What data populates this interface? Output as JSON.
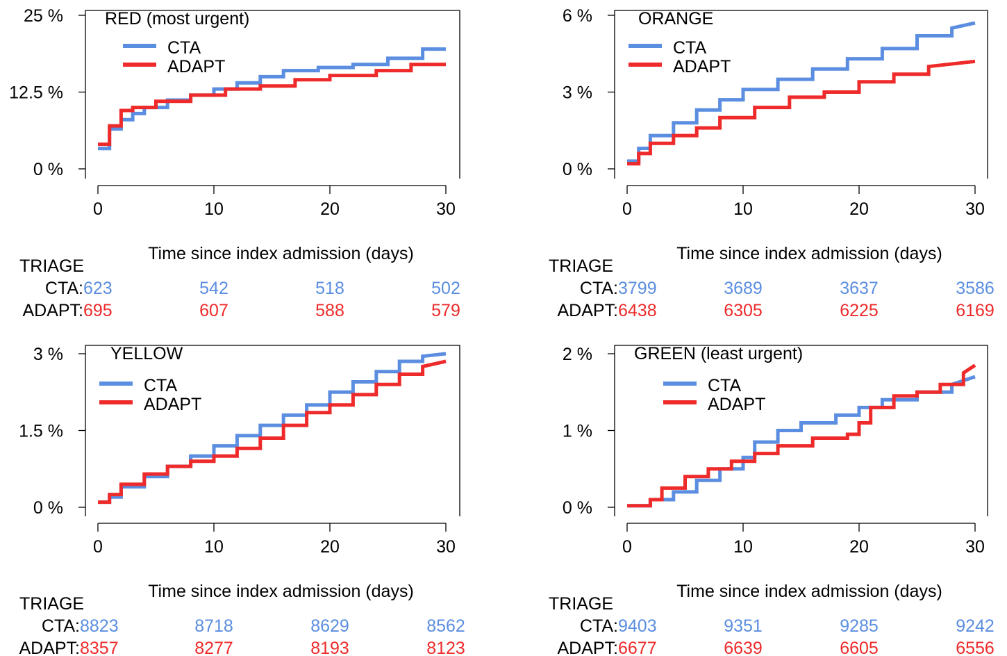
{
  "colors": {
    "cta": "#5b8ee0",
    "adapt": "#ee2a2a",
    "axis": "#000000"
  },
  "chart_data": [
    {
      "type": "line",
      "title": "RED (most urgent)",
      "xlabel": "Time since index admission (days)",
      "xticks": [
        "0",
        "10",
        "20",
        "30"
      ],
      "yticks": [
        "0 %",
        "12.5 %",
        "25 %"
      ],
      "xlim": [
        0,
        30
      ],
      "ylim": [
        0,
        25
      ],
      "legend": "top-left",
      "series": [
        {
          "name": "CTA",
          "x": [
            0,
            1,
            1,
            2,
            2,
            3,
            3,
            4,
            4,
            6,
            6,
            8,
            8,
            10,
            10,
            12,
            12,
            14,
            14,
            16,
            16,
            19,
            19,
            22,
            22,
            25,
            25,
            28,
            28,
            30
          ],
          "y": [
            3.3,
            3.3,
            6.5,
            6.5,
            8,
            8,
            9,
            9,
            10,
            10,
            11.2,
            11.2,
            12,
            12,
            13,
            13,
            14,
            14,
            15,
            15,
            16,
            16,
            16.5,
            16.5,
            17,
            17,
            18,
            18,
            19.5,
            19.5
          ]
        },
        {
          "name": "ADAPT",
          "x": [
            0,
            1,
            1,
            2,
            2,
            3,
            3,
            5,
            5,
            8,
            8,
            11,
            11,
            14,
            14,
            17,
            17,
            20,
            20,
            24,
            24,
            27,
            27,
            30
          ],
          "y": [
            4,
            4,
            7,
            7,
            9.5,
            9.5,
            10,
            10,
            11,
            11,
            12,
            12,
            13,
            13,
            13.5,
            13.5,
            14.5,
            14.5,
            15.2,
            15.2,
            16,
            16,
            17,
            17
          ]
        }
      ],
      "risk_table": {
        "header": "TRIAGE",
        "rows": [
          {
            "label": "CTA:",
            "values": [
              "623",
              "542",
              "518",
              "502"
            ]
          },
          {
            "label": "ADAPT:",
            "values": [
              "695",
              "607",
              "588",
              "579"
            ]
          }
        ]
      }
    },
    {
      "type": "line",
      "title": "ORANGE",
      "xlabel": "Time since index admission (days)",
      "xticks": [
        "0",
        "10",
        "20",
        "30"
      ],
      "yticks": [
        "0 %",
        "3 %",
        "6 %"
      ],
      "xlim": [
        0,
        30
      ],
      "ylim": [
        0,
        6
      ],
      "legend": "top-left",
      "series": [
        {
          "name": "CTA",
          "x": [
            0,
            1,
            1,
            2,
            2,
            4,
            4,
            6,
            6,
            8,
            8,
            10,
            10,
            13,
            13,
            16,
            16,
            19,
            19,
            22,
            22,
            25,
            25,
            28,
            28,
            30
          ],
          "y": [
            0.3,
            0.3,
            0.8,
            0.8,
            1.3,
            1.3,
            1.8,
            1.8,
            2.3,
            2.3,
            2.7,
            2.7,
            3.1,
            3.1,
            3.5,
            3.5,
            3.9,
            3.9,
            4.3,
            4.3,
            4.7,
            4.7,
            5.2,
            5.2,
            5.5,
            5.7
          ]
        },
        {
          "name": "ADAPT",
          "x": [
            0,
            1,
            1,
            2,
            2,
            4,
            4,
            6,
            6,
            8,
            8,
            11,
            11,
            14,
            14,
            17,
            17,
            20,
            20,
            23,
            23,
            26,
            26,
            30
          ],
          "y": [
            0.2,
            0.2,
            0.6,
            0.6,
            1,
            1,
            1.3,
            1.3,
            1.6,
            1.6,
            2,
            2,
            2.4,
            2.4,
            2.8,
            2.8,
            3,
            3,
            3.4,
            3.4,
            3.7,
            3.7,
            4,
            4.2
          ]
        }
      ],
      "risk_table": {
        "header": "TRIAGE",
        "rows": [
          {
            "label": "CTA:",
            "values": [
              "3799",
              "3689",
              "3637",
              "3586"
            ]
          },
          {
            "label": "ADAPT:",
            "values": [
              "6438",
              "6305",
              "6225",
              "6169"
            ]
          }
        ]
      }
    },
    {
      "type": "line",
      "title": "YELLOW",
      "xlabel": "Time since index admission (days)",
      "xticks": [
        "0",
        "10",
        "20",
        "30"
      ],
      "yticks": [
        "0 %",
        "1.5 %",
        "3 %"
      ],
      "xlim": [
        0,
        30
      ],
      "ylim": [
        0,
        3
      ],
      "legend": "top-left",
      "series": [
        {
          "name": "CTA",
          "x": [
            0,
            1,
            1,
            2,
            2,
            4,
            4,
            6,
            6,
            8,
            8,
            10,
            10,
            12,
            12,
            14,
            14,
            16,
            16,
            18,
            18,
            20,
            20,
            22,
            22,
            24,
            24,
            26,
            26,
            28,
            28,
            30
          ],
          "y": [
            0.1,
            0.1,
            0.2,
            0.2,
            0.4,
            0.4,
            0.6,
            0.6,
            0.8,
            0.8,
            1,
            1,
            1.2,
            1.2,
            1.4,
            1.4,
            1.6,
            1.6,
            1.8,
            1.8,
            2,
            2,
            2.25,
            2.25,
            2.45,
            2.45,
            2.65,
            2.65,
            2.85,
            2.85,
            2.95,
            3
          ]
        },
        {
          "name": "ADAPT",
          "x": [
            0,
            1,
            1,
            2,
            2,
            4,
            4,
            6,
            6,
            8,
            8,
            10,
            10,
            12,
            12,
            14,
            14,
            16,
            16,
            18,
            18,
            20,
            20,
            22,
            22,
            24,
            24,
            26,
            26,
            28,
            28,
            30
          ],
          "y": [
            0.1,
            0.1,
            0.25,
            0.25,
            0.45,
            0.45,
            0.65,
            0.65,
            0.8,
            0.8,
            0.9,
            0.9,
            1,
            1,
            1.15,
            1.15,
            1.35,
            1.35,
            1.6,
            1.6,
            1.85,
            1.85,
            2,
            2,
            2.2,
            2.2,
            2.4,
            2.4,
            2.6,
            2.6,
            2.75,
            2.85
          ]
        }
      ],
      "risk_table": {
        "header": "TRIAGE",
        "rows": [
          {
            "label": "CTA:",
            "values": [
              "8823",
              "8718",
              "8629",
              "8562"
            ]
          },
          {
            "label": "ADAPT:",
            "values": [
              "8357",
              "8277",
              "8193",
              "8123"
            ]
          }
        ]
      }
    },
    {
      "type": "line",
      "title": "GREEN (least urgent)",
      "xlabel": "Time since index admission (days)",
      "xticks": [
        "0",
        "10",
        "20",
        "30"
      ],
      "yticks": [
        "0 %",
        "1 %",
        "2 %"
      ],
      "xlim": [
        0,
        30
      ],
      "ylim": [
        0,
        2
      ],
      "legend": "top-left",
      "series": [
        {
          "name": "CTA",
          "x": [
            0,
            2,
            2,
            4,
            4,
            6,
            6,
            8,
            8,
            10,
            10,
            11,
            11,
            13,
            13,
            15,
            15,
            18,
            18,
            20,
            20,
            22,
            22,
            25,
            25,
            28,
            28,
            30
          ],
          "y": [
            0.02,
            0.02,
            0.1,
            0.1,
            0.2,
            0.2,
            0.35,
            0.35,
            0.5,
            0.5,
            0.65,
            0.65,
            0.85,
            0.85,
            1,
            1,
            1.1,
            1.1,
            1.2,
            1.2,
            1.3,
            1.3,
            1.4,
            1.4,
            1.5,
            1.5,
            1.6,
            1.7
          ]
        },
        {
          "name": "ADAPT",
          "x": [
            0,
            2,
            2,
            3,
            3,
            5,
            5,
            7,
            7,
            9,
            9,
            11,
            11,
            13,
            13,
            16,
            16,
            19,
            19,
            20,
            20,
            21,
            21,
            23,
            23,
            25,
            25,
            27,
            27,
            29,
            29,
            30
          ],
          "y": [
            0.02,
            0.02,
            0.1,
            0.1,
            0.25,
            0.25,
            0.4,
            0.4,
            0.5,
            0.5,
            0.6,
            0.6,
            0.7,
            0.7,
            0.8,
            0.8,
            0.9,
            0.9,
            0.95,
            0.95,
            1.1,
            1.1,
            1.3,
            1.3,
            1.45,
            1.45,
            1.5,
            1.5,
            1.6,
            1.6,
            1.75,
            1.85
          ]
        }
      ],
      "risk_table": {
        "header": "TRIAGE",
        "rows": [
          {
            "label": "CTA:",
            "values": [
              "9403",
              "9351",
              "9285",
              "9242"
            ]
          },
          {
            "label": "ADAPT:",
            "values": [
              "6677",
              "6639",
              "6605",
              "6556"
            ]
          }
        ]
      }
    }
  ]
}
